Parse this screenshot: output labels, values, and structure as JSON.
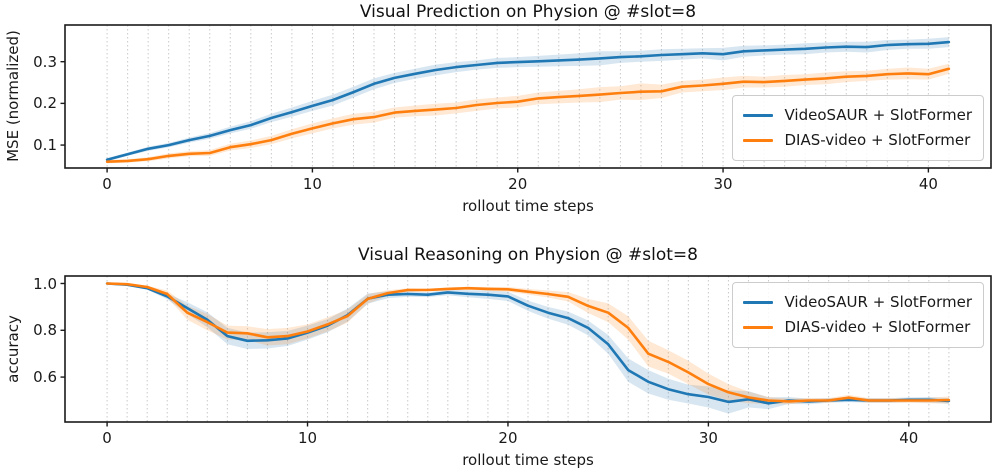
{
  "colors": {
    "blue": "#1f77b4",
    "orange": "#ff7f0e",
    "band_opacity": 0.18,
    "grid": "#c9c9c9",
    "spine": "#1a1a1a",
    "text": "#1a1a1a"
  },
  "chart_data": [
    {
      "type": "line",
      "title": "Visual Prediction on Physion @ #slot=8",
      "xlabel": "rollout time steps",
      "ylabel": "MSE (normalized)",
      "xlim": [
        -2.05,
        43.05
      ],
      "ylim": [
        0.045,
        0.388
      ],
      "grid": "vertical dotted gridline at every integer time step",
      "grid_x": {
        "from": 0,
        "to": 41,
        "step": 1
      },
      "legend_position": "lower right",
      "xticks": [
        {
          "v": 0,
          "label": "0"
        },
        {
          "v": 10,
          "label": "10"
        },
        {
          "v": 20,
          "label": "20"
        },
        {
          "v": 30,
          "label": "30"
        },
        {
          "v": 40,
          "label": "40"
        }
      ],
      "yticks": [
        {
          "v": 0.1,
          "label": "0.1"
        },
        {
          "v": 0.2,
          "label": "0.2"
        },
        {
          "v": 0.3,
          "label": "0.3"
        }
      ],
      "series": [
        {
          "name": "VideoSAUR + SlotFormer",
          "color": "blue",
          "x": [
            0,
            1,
            2,
            3,
            4,
            5,
            6,
            7,
            8,
            9,
            10,
            11,
            12,
            13,
            14,
            15,
            16,
            17,
            18,
            19,
            20,
            21,
            22,
            23,
            24,
            25,
            26,
            27,
            28,
            29,
            30,
            31,
            32,
            33,
            34,
            35,
            36,
            37,
            38,
            39,
            40,
            41
          ],
          "y": [
            0.065,
            0.078,
            0.091,
            0.1,
            0.112,
            0.122,
            0.136,
            0.148,
            0.165,
            0.179,
            0.194,
            0.208,
            0.227,
            0.247,
            0.261,
            0.271,
            0.28,
            0.287,
            0.292,
            0.297,
            0.299,
            0.301,
            0.303,
            0.305,
            0.308,
            0.311,
            0.313,
            0.316,
            0.318,
            0.32,
            0.318,
            0.325,
            0.327,
            0.329,
            0.331,
            0.334,
            0.336,
            0.335,
            0.34,
            0.342,
            0.343,
            0.347
          ],
          "band": [
            0.004,
            0.004,
            0.005,
            0.005,
            0.006,
            0.007,
            0.008,
            0.009,
            0.01,
            0.011,
            0.012,
            0.013,
            0.013,
            0.013,
            0.012,
            0.012,
            0.013,
            0.012,
            0.011,
            0.012,
            0.012,
            0.013,
            0.014,
            0.015,
            0.017,
            0.014,
            0.013,
            0.014,
            0.013,
            0.012,
            0.015,
            0.013,
            0.012,
            0.012,
            0.013,
            0.012,
            0.012,
            0.013,
            0.012,
            0.011,
            0.012,
            0.012
          ]
        },
        {
          "name": "DIAS-video + SlotFormer",
          "color": "orange",
          "x": [
            0,
            1,
            2,
            3,
            4,
            5,
            6,
            7,
            8,
            9,
            10,
            11,
            12,
            13,
            14,
            15,
            16,
            17,
            18,
            19,
            20,
            21,
            22,
            23,
            24,
            25,
            26,
            27,
            28,
            29,
            30,
            31,
            32,
            33,
            34,
            35,
            36,
            37,
            38,
            39,
            40,
            41
          ],
          "y": [
            0.06,
            0.062,
            0.066,
            0.074,
            0.079,
            0.081,
            0.095,
            0.102,
            0.112,
            0.127,
            0.14,
            0.152,
            0.162,
            0.167,
            0.178,
            0.182,
            0.185,
            0.189,
            0.196,
            0.201,
            0.204,
            0.212,
            0.215,
            0.218,
            0.221,
            0.225,
            0.228,
            0.229,
            0.24,
            0.243,
            0.247,
            0.252,
            0.251,
            0.254,
            0.257,
            0.26,
            0.264,
            0.266,
            0.27,
            0.272,
            0.27,
            0.283
          ],
          "band": [
            0.004,
            0.004,
            0.005,
            0.006,
            0.006,
            0.007,
            0.008,
            0.009,
            0.01,
            0.011,
            0.012,
            0.012,
            0.013,
            0.013,
            0.012,
            0.013,
            0.014,
            0.013,
            0.014,
            0.013,
            0.014,
            0.014,
            0.015,
            0.016,
            0.018,
            0.016,
            0.02,
            0.016,
            0.014,
            0.014,
            0.015,
            0.014,
            0.013,
            0.014,
            0.013,
            0.014,
            0.013,
            0.012,
            0.013,
            0.014,
            0.013,
            0.012
          ]
        }
      ]
    },
    {
      "type": "line",
      "title": "Visual Reasoning on Physion @ #slot=8",
      "xlabel": "rollout time steps",
      "ylabel": "accuracy",
      "xlim": [
        -2.1,
        44.1
      ],
      "ylim": [
        0.408,
        1.032
      ],
      "grid": "vertical dotted gridline at every integer time step",
      "grid_x": {
        "from": 0,
        "to": 42,
        "step": 1
      },
      "legend_position": "upper right",
      "xticks": [
        {
          "v": 0,
          "label": "0"
        },
        {
          "v": 10,
          "label": "10"
        },
        {
          "v": 20,
          "label": "20"
        },
        {
          "v": 30,
          "label": "30"
        },
        {
          "v": 40,
          "label": "40"
        }
      ],
      "yticks": [
        {
          "v": 0.6,
          "label": "0.6"
        },
        {
          "v": 0.8,
          "label": "0.8"
        },
        {
          "v": 1.0,
          "label": "1.0"
        }
      ],
      "series": [
        {
          "name": "VideoSAUR + SlotFormer",
          "color": "blue",
          "x": [
            0,
            1,
            2,
            3,
            4,
            5,
            6,
            7,
            8,
            9,
            10,
            11,
            12,
            13,
            14,
            15,
            16,
            17,
            18,
            19,
            20,
            21,
            22,
            23,
            24,
            25,
            26,
            27,
            28,
            29,
            30,
            31,
            32,
            33,
            34,
            35,
            36,
            37,
            38,
            39,
            40,
            41,
            42
          ],
          "y": [
            1.0,
            0.995,
            0.98,
            0.945,
            0.895,
            0.845,
            0.775,
            0.755,
            0.757,
            0.765,
            0.79,
            0.82,
            0.865,
            0.935,
            0.952,
            0.955,
            0.952,
            0.962,
            0.956,
            0.952,
            0.945,
            0.905,
            0.875,
            0.852,
            0.81,
            0.74,
            0.63,
            0.58,
            0.548,
            0.527,
            0.515,
            0.494,
            0.505,
            0.488,
            0.5,
            0.496,
            0.5,
            0.503,
            0.5,
            0.5,
            0.503,
            0.503,
            0.498
          ],
          "band": [
            0.002,
            0.003,
            0.006,
            0.012,
            0.025,
            0.032,
            0.035,
            0.035,
            0.035,
            0.032,
            0.03,
            0.028,
            0.028,
            0.022,
            0.015,
            0.012,
            0.01,
            0.012,
            0.015,
            0.018,
            0.02,
            0.022,
            0.025,
            0.028,
            0.032,
            0.04,
            0.05,
            0.05,
            0.045,
            0.04,
            0.045,
            0.05,
            0.035,
            0.025,
            0.015,
            0.012,
            0.01,
            0.01,
            0.01,
            0.01,
            0.01,
            0.012,
            0.012
          ]
        },
        {
          "name": "DIAS-video + SlotFormer",
          "color": "orange",
          "x": [
            0,
            1,
            2,
            3,
            4,
            5,
            6,
            7,
            8,
            9,
            10,
            11,
            12,
            13,
            14,
            15,
            16,
            17,
            18,
            19,
            20,
            21,
            22,
            23,
            24,
            25,
            26,
            27,
            28,
            29,
            30,
            31,
            32,
            33,
            34,
            35,
            36,
            37,
            38,
            39,
            40,
            41,
            42
          ],
          "y": [
            1.0,
            0.997,
            0.985,
            0.955,
            0.875,
            0.835,
            0.79,
            0.787,
            0.77,
            0.775,
            0.795,
            0.825,
            0.861,
            0.934,
            0.959,
            0.972,
            0.972,
            0.977,
            0.98,
            0.977,
            0.975,
            0.965,
            0.955,
            0.943,
            0.904,
            0.875,
            0.81,
            0.7,
            0.665,
            0.62,
            0.57,
            0.535,
            0.513,
            0.5,
            0.496,
            0.5,
            0.5,
            0.512,
            0.5,
            0.5,
            0.5,
            0.5,
            0.502
          ],
          "band": [
            0.002,
            0.003,
            0.005,
            0.015,
            0.03,
            0.035,
            0.03,
            0.03,
            0.035,
            0.035,
            0.03,
            0.03,
            0.028,
            0.02,
            0.012,
            0.008,
            0.006,
            0.006,
            0.006,
            0.008,
            0.01,
            0.012,
            0.015,
            0.02,
            0.03,
            0.04,
            0.05,
            0.055,
            0.05,
            0.05,
            0.045,
            0.035,
            0.025,
            0.015,
            0.012,
            0.01,
            0.01,
            0.012,
            0.01,
            0.01,
            0.01,
            0.012,
            0.015
          ]
        }
      ]
    }
  ]
}
